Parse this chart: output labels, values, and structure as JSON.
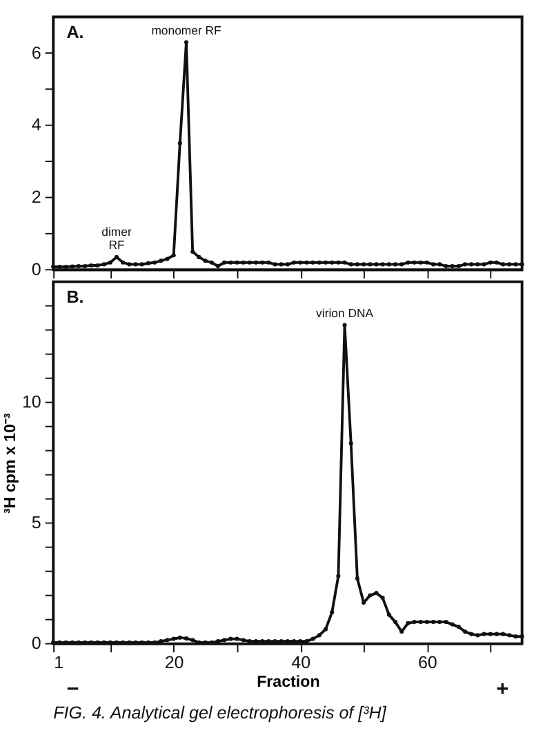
{
  "chart_data": [
    {
      "type": "line",
      "x": [
        1,
        2,
        3,
        4,
        5,
        6,
        7,
        8,
        9,
        10,
        11,
        12,
        13,
        14,
        15,
        16,
        17,
        18,
        19,
        20,
        21,
        22,
        23,
        24,
        25,
        26,
        27,
        28,
        29,
        30,
        31,
        32,
        33,
        34,
        35,
        36,
        37,
        38,
        39,
        40,
        41,
        42,
        43,
        44,
        45,
        46,
        47,
        48,
        49,
        50,
        51,
        52,
        53,
        54,
        55,
        56,
        57,
        58,
        59,
        60,
        61,
        62,
        63,
        64,
        65,
        66,
        67,
        68,
        69,
        70,
        71,
        72,
        73,
        74,
        75
      ],
      "series": [
        {
          "color": "#111111",
          "values": [
            0.08,
            0.08,
            0.08,
            0.09,
            0.1,
            0.1,
            0.12,
            0.12,
            0.15,
            0.2,
            0.35,
            0.2,
            0.15,
            0.15,
            0.15,
            0.18,
            0.2,
            0.25,
            0.3,
            0.4,
            3.5,
            6.3,
            0.5,
            0.35,
            0.25,
            0.2,
            0.1,
            0.2,
            0.2,
            0.2,
            0.2,
            0.2,
            0.2,
            0.2,
            0.2,
            0.15,
            0.15,
            0.15,
            0.2,
            0.2,
            0.2,
            0.2,
            0.2,
            0.2,
            0.2,
            0.2,
            0.2,
            0.15,
            0.15,
            0.15,
            0.15,
            0.15,
            0.15,
            0.15,
            0.15,
            0.15,
            0.2,
            0.2,
            0.2,
            0.2,
            0.15,
            0.15,
            0.1,
            0.1,
            0.1,
            0.15,
            0.15,
            0.15,
            0.15,
            0.2,
            0.2,
            0.15,
            0.15,
            0.15,
            0.15
          ]
        }
      ],
      "xlim": [
        1,
        75
      ],
      "xticks": [
        1,
        {
          "value": 10,
          "label": null
        },
        20,
        {
          "value": 30,
          "label": null
        },
        40,
        {
          "value": 50,
          "label": null
        },
        60,
        {
          "value": 70,
          "label": null
        }
      ],
      "ylim": [
        0,
        7
      ],
      "yticks": [
        0,
        {
          "value": 1,
          "label": null
        },
        2,
        {
          "value": 3,
          "label": null
        },
        4,
        {
          "value": 5,
          "label": null
        },
        6
      ],
      "tick_labels": "y",
      "marker": "circle",
      "line_style": "solid",
      "grid": false,
      "annotations": [
        "A.",
        {
          "text": "monomer RF",
          "x": 22,
          "y": 6.3
        },
        {
          "text": "dimer RF",
          "x": 11,
          "y": 0.35
        }
      ]
    },
    {
      "type": "line",
      "x": [
        1,
        2,
        3,
        4,
        5,
        6,
        7,
        8,
        9,
        10,
        11,
        12,
        13,
        14,
        15,
        16,
        17,
        18,
        19,
        20,
        21,
        22,
        23,
        24,
        25,
        26,
        27,
        28,
        29,
        30,
        31,
        32,
        33,
        34,
        35,
        36,
        37,
        38,
        39,
        40,
        41,
        42,
        43,
        44,
        45,
        46,
        47,
        48,
        49,
        50,
        51,
        52,
        53,
        54,
        55,
        56,
        57,
        58,
        59,
        60,
        61,
        62,
        63,
        64,
        65,
        66,
        67,
        68,
        69,
        70,
        71,
        72,
        73,
        74,
        75
      ],
      "series": [
        {
          "color": "#111111",
          "values": [
            0.05,
            0.05,
            0.05,
            0.05,
            0.05,
            0.05,
            0.05,
            0.05,
            0.05,
            0.05,
            0.05,
            0.05,
            0.05,
            0.05,
            0.05,
            0.05,
            0.05,
            0.1,
            0.15,
            0.2,
            0.25,
            0.22,
            0.15,
            0.05,
            0.05,
            0.05,
            0.1,
            0.15,
            0.2,
            0.2,
            0.15,
            0.1,
            0.1,
            0.1,
            0.1,
            0.1,
            0.1,
            0.1,
            0.1,
            0.1,
            0.1,
            0.2,
            0.35,
            0.6,
            1.3,
            2.8,
            13.2,
            8.3,
            2.7,
            1.7,
            2.0,
            2.1,
            1.9,
            1.2,
            0.9,
            0.5,
            0.85,
            0.9,
            0.9,
            0.9,
            0.9,
            0.9,
            0.9,
            0.8,
            0.7,
            0.5,
            0.4,
            0.35,
            0.4,
            0.4,
            0.4,
            0.4,
            0.35,
            0.3,
            0.3
          ]
        }
      ],
      "xlim": [
        1,
        75
      ],
      "xticks": [
        1,
        {
          "value": 10,
          "label": null
        },
        20,
        {
          "value": 30,
          "label": null
        },
        40,
        {
          "value": 50,
          "label": null
        },
        60,
        {
          "value": 70,
          "label": null
        }
      ],
      "ylim": [
        0,
        15
      ],
      "yticks": [
        0,
        {
          "value": 1,
          "label": null
        },
        {
          "value": 2,
          "label": null
        },
        {
          "value": 3,
          "label": null
        },
        {
          "value": 4,
          "label": null
        },
        5,
        {
          "value": 6,
          "label": null
        },
        {
          "value": 7,
          "label": null
        },
        {
          "value": 8,
          "label": null
        },
        {
          "value": 9,
          "label": null
        },
        10,
        {
          "value": 11,
          "label": null
        },
        {
          "value": 12,
          "label": null
        },
        {
          "value": 13,
          "label": null
        },
        {
          "value": 14,
          "label": null
        }
      ],
      "xlabel": "Fraction",
      "ylabel": "³H cpm x 10⁻³",
      "marker": "circle",
      "line_style": "solid",
      "grid": false,
      "annotations": [
        "B.",
        "−",
        "+",
        "FIG. 4. Analytical gel electrophoresis of [³H]",
        {
          "text": "virion DNA",
          "x": 47,
          "y": 13.2
        }
      ]
    }
  ]
}
